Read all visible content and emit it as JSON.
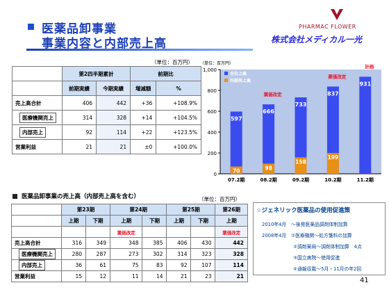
{
  "header": {
    "title": "医薬品卸事業",
    "subtitle": "事業内容と内部売上高",
    "brand_top": "PHARMAC FLOWER",
    "brand_bottom": "株式会社メディカル一光"
  },
  "unit_label": "（単位：百万円）",
  "table1": {
    "group_header": "第2四半期累計",
    "change_header": "前期比",
    "columns": [
      "前期実績",
      "今期実績",
      "増減額",
      "%"
    ],
    "rows": [
      {
        "label": "売上高合計",
        "prev": "406",
        "curr": "442",
        "diff": "+36",
        "pct": "+108.9%"
      },
      {
        "label": "医療機関売上",
        "prev": "314",
        "curr": "328",
        "diff": "+14",
        "pct": "+104.5%"
      },
      {
        "label": "内部売上",
        "prev": "92",
        "curr": "114",
        "diff": "+22",
        "pct": "+123.5%"
      },
      {
        "label": "営業利益",
        "prev": "21",
        "curr": "21",
        "diff": "±0",
        "pct": "+100.0%"
      }
    ]
  },
  "section2": {
    "title": "医薬品卸事業の売上高（内部売上高を含む）",
    "periods": [
      "第23期",
      "第24期",
      "第25期",
      "第26期"
    ],
    "halves": [
      "上期",
      "下期",
      "上期",
      "下期",
      "上期",
      "下期",
      "上期"
    ],
    "notes": [
      "",
      "",
      "薬価改定",
      "",
      "",
      "",
      "薬価改定"
    ],
    "rows": [
      {
        "label": "売上高合計",
        "values": [
          "316",
          "349",
          "348",
          "385",
          "406",
          "430",
          "442"
        ]
      },
      {
        "label": "医療機関売上",
        "values": [
          "280",
          "287",
          "273",
          "302",
          "314",
          "323",
          "328"
        ]
      },
      {
        "label": "内部売上",
        "values": [
          "36",
          "61",
          "75",
          "83",
          "92",
          "107",
          "114"
        ]
      },
      {
        "label": "営業利益",
        "values": [
          "15",
          "12",
          "11",
          "14",
          "21",
          "23",
          "21"
        ]
      }
    ]
  },
  "generic_box": {
    "title": "☆ジェネリック医薬品の使用促進策",
    "lines": [
      "2010年4月　～後発医薬品調剤体制加算",
      "2008年4月　①医療機関～処方箋料の加算",
      "②調剤薬局～調剤体制加算　4点",
      "③国立病院～使用促進",
      "④通報収載～5月・11月の年2回"
    ]
  },
  "page_number": "41",
  "chart_data": {
    "type": "bar",
    "title": "",
    "categories": [
      "07.2期",
      "08.2期",
      "09.2期",
      "10.2期",
      "11.2期"
    ],
    "series": [
      {
        "name": "全社上高",
        "values": [
          597,
          666,
          733,
          837,
          931
        ],
        "color": "#3a4cf0"
      },
      {
        "name": "内部売上高",
        "values": [
          70,
          98,
          158,
          199,
          null
        ],
        "color": "#e89018"
      }
    ],
    "ylim": [
      0,
      1000
    ],
    "yticks": [
      "0",
      "200",
      "400",
      "600",
      "800",
      "1,000"
    ],
    "legend_position": "top-left",
    "annotations": [
      {
        "category": "08.2期",
        "text": "薬価改定"
      },
      {
        "category": "10.2期",
        "text": "薬価改定"
      },
      {
        "category": "11.2期",
        "text": "計画"
      }
    ],
    "colors": {
      "background": "#b7c8e8",
      "axis": "#000000",
      "note": "#e8152b"
    }
  }
}
